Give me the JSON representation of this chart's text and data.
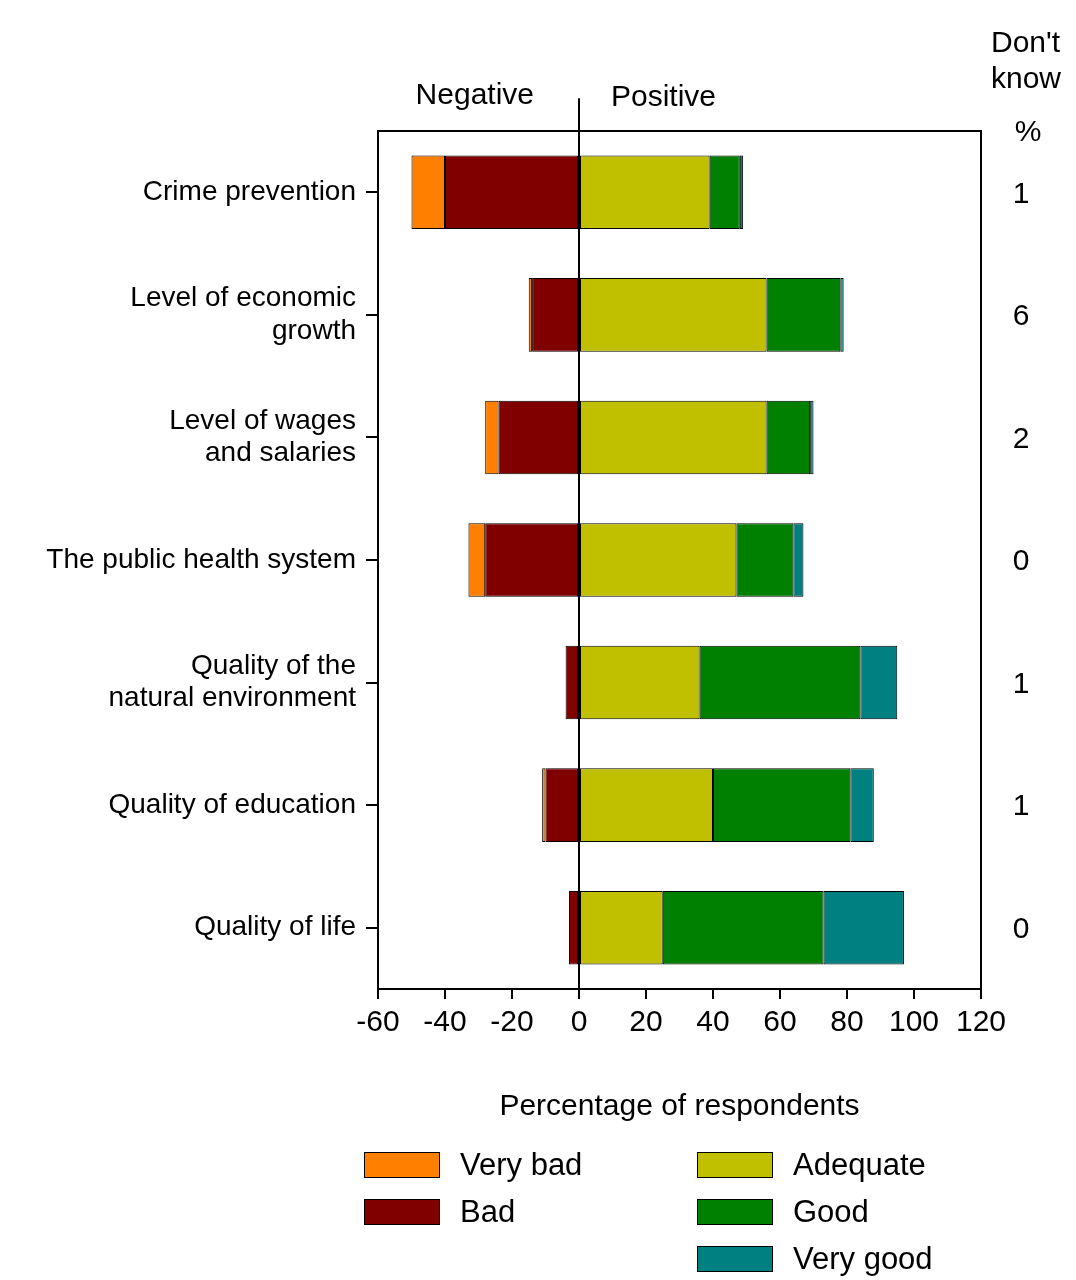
{
  "chart_data": {
    "type": "bar",
    "orientation": "horizontal",
    "stacked": true,
    "xlabel": "Percentage of respondents",
    "categories": [
      "Crime prevention",
      "Level of economic\ngrowth",
      "Level of wages\nand salaries",
      "The public health system",
      "Quality of the\nnatural environment",
      "Quality of education",
      "Quality of life"
    ],
    "series": [
      {
        "name": "Bad",
        "color": "#800000",
        "values": [
          -40,
          -14,
          -24,
          -28,
          -4,
          -10,
          -3
        ]
      },
      {
        "name": "Very bad",
        "color": "#ff8000",
        "values": [
          -10,
          -1,
          -4,
          -5,
          0,
          -1,
          0
        ]
      },
      {
        "name": "Adequate",
        "color": "#c0c000",
        "values": [
          39,
          56,
          56,
          47,
          36,
          40,
          25
        ]
      },
      {
        "name": "Good",
        "color": "#008000",
        "values": [
          9,
          22,
          13,
          17,
          48,
          41,
          48
        ]
      },
      {
        "name": "Very good",
        "color": "#008080",
        "values": [
          1,
          1,
          1,
          3,
          11,
          7,
          24
        ]
      }
    ],
    "xlim": [
      -60,
      120
    ],
    "xticks": [
      -60,
      -40,
      -20,
      0,
      20,
      40,
      60,
      80,
      100,
      120
    ],
    "ref_lines": [
      {
        "axis": "x",
        "value": 0
      }
    ],
    "annotations": [
      "Negative",
      "Positive",
      "Don't know",
      "%",
      "1",
      "6",
      "2",
      "0",
      "1",
      "1",
      "0"
    ],
    "grid": false,
    "legend": "bottom"
  }
}
